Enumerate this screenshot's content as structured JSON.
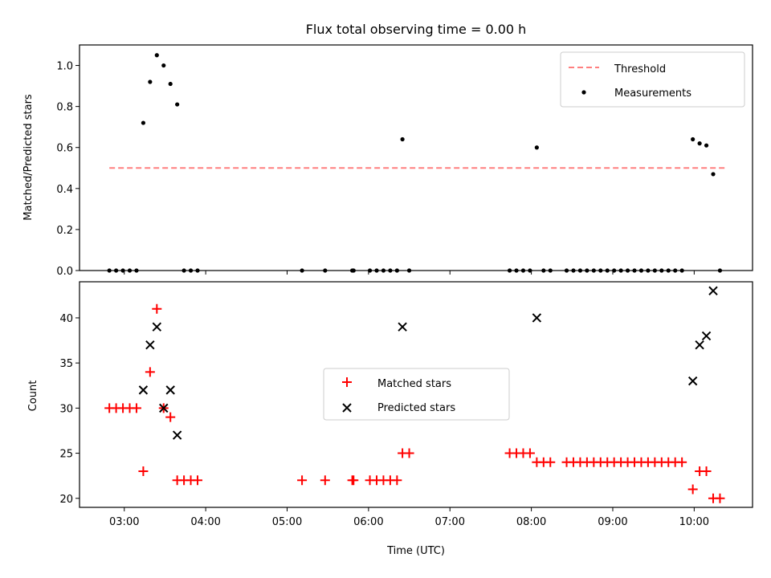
{
  "title": "Flux total observing time = 0.00 h",
  "chart_data": [
    {
      "type": "scatter",
      "title": "Flux total observing time = 0.00 h",
      "xlabel": "",
      "ylabel": "Matched/Predicted stars",
      "xlim": [
        "02:27",
        "10:43"
      ],
      "ylim": [
        0,
        1.1
      ],
      "yticks": [
        "0.0",
        "0.2",
        "0.4",
        "0.6",
        "0.8",
        "1.0"
      ],
      "grid": false,
      "legend_position": "top-right",
      "threshold": {
        "name": "Threshold",
        "value": 0.5,
        "x": [
          "02:49",
          "10:24"
        ],
        "color": "#ff7f7f",
        "style": "dashed"
      },
      "series": [
        {
          "name": "Measurements",
          "marker": "dot",
          "color": "#000000",
          "points": [
            [
              "02:49",
              0
            ],
            [
              "02:54",
              0
            ],
            [
              "02:59",
              0
            ],
            [
              "03:04",
              0
            ],
            [
              "03:09",
              0
            ],
            [
              "03:14",
              0.72
            ],
            [
              "03:19",
              0.92
            ],
            [
              "03:24",
              1.05
            ],
            [
              "03:29",
              1.0
            ],
            [
              "03:34",
              0.91
            ],
            [
              "03:39",
              0.81
            ],
            [
              "03:44",
              0
            ],
            [
              "03:49",
              0
            ],
            [
              "03:54",
              0
            ],
            [
              "05:11",
              0
            ],
            [
              "05:28",
              0
            ],
            [
              "05:48",
              0
            ],
            [
              "05:49",
              0
            ],
            [
              "06:01",
              0
            ],
            [
              "06:06",
              0
            ],
            [
              "06:11",
              0
            ],
            [
              "06:16",
              0
            ],
            [
              "06:21",
              0
            ],
            [
              "06:25",
              0.64
            ],
            [
              "06:30",
              0
            ],
            [
              "07:44",
              0
            ],
            [
              "07:49",
              0
            ],
            [
              "07:54",
              0
            ],
            [
              "07:59",
              0
            ],
            [
              "08:04",
              0.6
            ],
            [
              "08:09",
              0
            ],
            [
              "08:14",
              0
            ],
            [
              "08:26",
              0
            ],
            [
              "08:31",
              0
            ],
            [
              "08:36",
              0
            ],
            [
              "08:41",
              0
            ],
            [
              "08:46",
              0
            ],
            [
              "08:51",
              0
            ],
            [
              "08:56",
              0
            ],
            [
              "09:01",
              0
            ],
            [
              "09:06",
              0
            ],
            [
              "09:11",
              0
            ],
            [
              "09:16",
              0
            ],
            [
              "09:21",
              0
            ],
            [
              "09:26",
              0
            ],
            [
              "09:31",
              0
            ],
            [
              "09:36",
              0
            ],
            [
              "09:41",
              0
            ],
            [
              "09:46",
              0
            ],
            [
              "09:51",
              0
            ],
            [
              "09:59",
              0.64
            ],
            [
              "10:04",
              0.62
            ],
            [
              "10:09",
              0.61
            ],
            [
              "10:14",
              0.47
            ],
            [
              "10:19",
              0
            ]
          ]
        }
      ]
    },
    {
      "type": "scatter",
      "title": "",
      "xlabel": "Time (UTC)",
      "ylabel": "Count",
      "xlim": [
        "02:27",
        "10:43"
      ],
      "ylim": [
        19,
        44
      ],
      "xticks": [
        "03:00",
        "04:00",
        "05:00",
        "06:00",
        "07:00",
        "08:00",
        "09:00",
        "10:00"
      ],
      "yticks": [
        "20",
        "25",
        "30",
        "35",
        "40"
      ],
      "grid": false,
      "legend_position": "center",
      "series": [
        {
          "name": "Matched stars",
          "marker": "plus",
          "color": "#ff0000",
          "points": [
            [
              "02:49",
              30
            ],
            [
              "02:54",
              30
            ],
            [
              "02:59",
              30
            ],
            [
              "03:04",
              30
            ],
            [
              "03:09",
              30
            ],
            [
              "03:14",
              23
            ],
            [
              "03:19",
              34
            ],
            [
              "03:24",
              41
            ],
            [
              "03:29",
              30
            ],
            [
              "03:34",
              29
            ],
            [
              "03:39",
              22
            ],
            [
              "03:44",
              22
            ],
            [
              "03:49",
              22
            ],
            [
              "03:54",
              22
            ],
            [
              "05:11",
              22
            ],
            [
              "05:28",
              22
            ],
            [
              "05:48",
              22
            ],
            [
              "05:49",
              22
            ],
            [
              "06:01",
              22
            ],
            [
              "06:06",
              22
            ],
            [
              "06:11",
              22
            ],
            [
              "06:16",
              22
            ],
            [
              "06:21",
              22
            ],
            [
              "06:25",
              25
            ],
            [
              "06:30",
              25
            ],
            [
              "07:44",
              25
            ],
            [
              "07:49",
              25
            ],
            [
              "07:54",
              25
            ],
            [
              "07:59",
              25
            ],
            [
              "08:04",
              24
            ],
            [
              "08:09",
              24
            ],
            [
              "08:14",
              24
            ],
            [
              "08:26",
              24
            ],
            [
              "08:31",
              24
            ],
            [
              "08:36",
              24
            ],
            [
              "08:41",
              24
            ],
            [
              "08:46",
              24
            ],
            [
              "08:51",
              24
            ],
            [
              "08:56",
              24
            ],
            [
              "09:01",
              24
            ],
            [
              "09:06",
              24
            ],
            [
              "09:11",
              24
            ],
            [
              "09:16",
              24
            ],
            [
              "09:21",
              24
            ],
            [
              "09:26",
              24
            ],
            [
              "09:31",
              24
            ],
            [
              "09:36",
              24
            ],
            [
              "09:41",
              24
            ],
            [
              "09:46",
              24
            ],
            [
              "09:51",
              24
            ],
            [
              "09:59",
              21
            ],
            [
              "10:04",
              23
            ],
            [
              "10:09",
              23
            ],
            [
              "10:14",
              20
            ],
            [
              "10:19",
              20
            ]
          ]
        },
        {
          "name": "Predicted stars",
          "marker": "x",
          "color": "#000000",
          "points": [
            [
              "03:14",
              32
            ],
            [
              "03:19",
              37
            ],
            [
              "03:24",
              39
            ],
            [
              "03:29",
              30
            ],
            [
              "03:34",
              32
            ],
            [
              "03:39",
              27
            ],
            [
              "06:25",
              39
            ],
            [
              "08:04",
              40
            ],
            [
              "09:59",
              33
            ],
            [
              "10:04",
              37
            ],
            [
              "10:09",
              38
            ],
            [
              "10:14",
              43
            ]
          ]
        }
      ]
    }
  ]
}
